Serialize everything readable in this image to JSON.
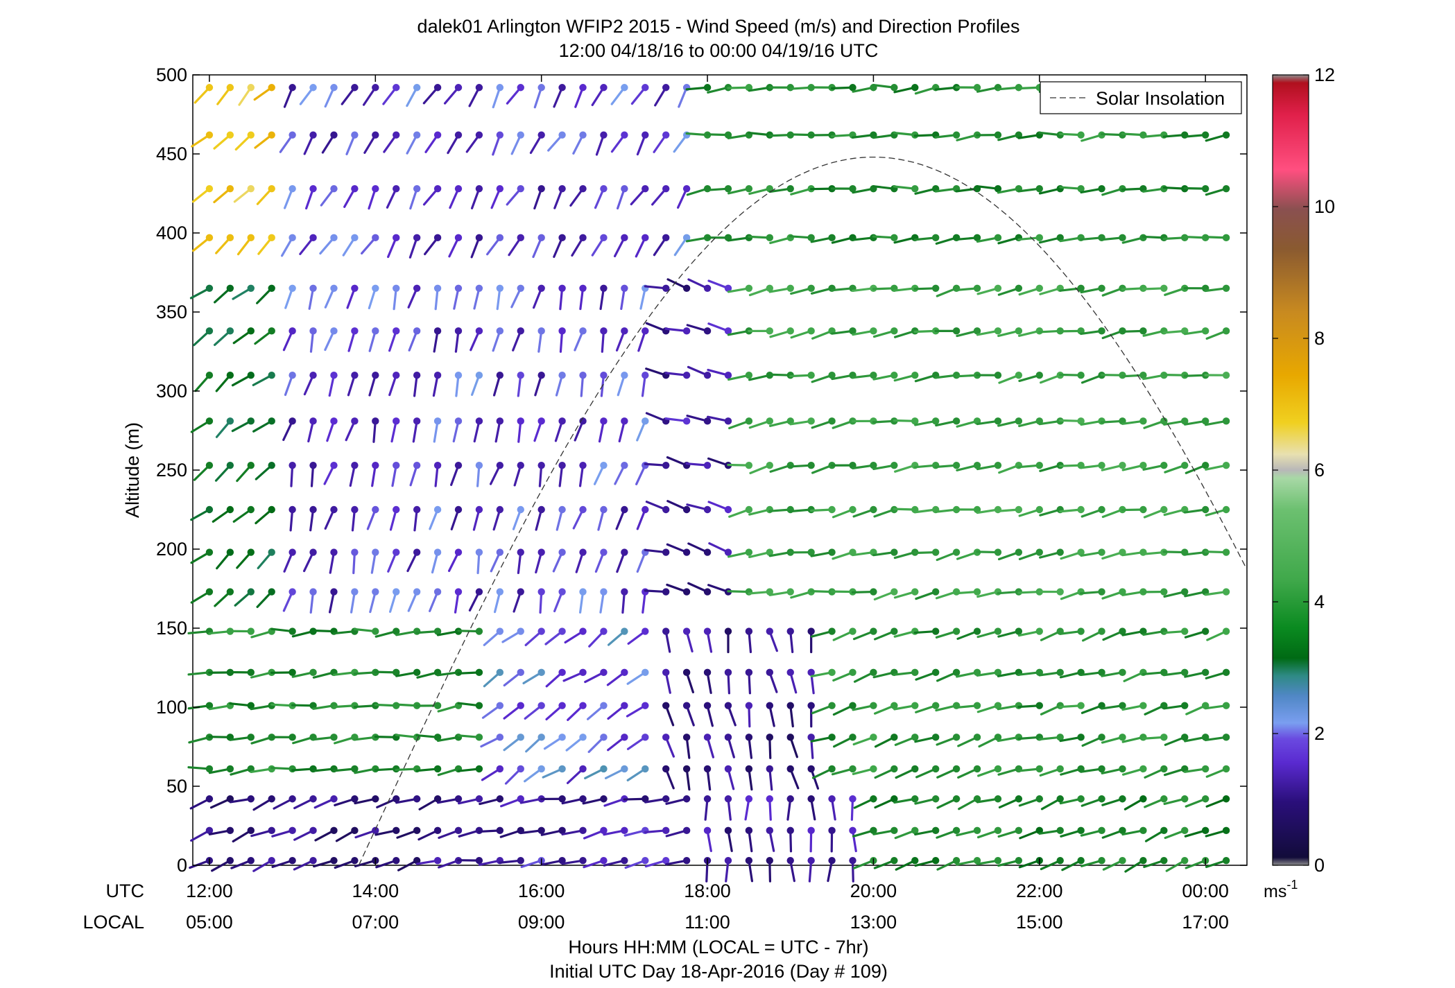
{
  "chart_data": {
    "type": "wind-barb-profile",
    "title": "dalek01 Arlington WFIP2 2015 - Wind Speed (m/s) and Direction Profiles",
    "subtitle": "12:00 04/18/16 to 00:00 04/19/16  UTC",
    "ylabel": "Altitude (m)",
    "xlabel": "Hours HH:MM  (LOCAL = UTC - 7hr)",
    "xlabel2": "Initial UTC Day 18-Apr-2016 (Day # 109)",
    "x_row_labels": [
      "UTC",
      "LOCAL"
    ],
    "ylim": [
      0,
      500
    ],
    "yticks": [
      "0",
      "50",
      "100",
      "150",
      "200",
      "250",
      "300",
      "350",
      "400",
      "450",
      "500"
    ],
    "xlim_hours": [
      11.8,
      24.5
    ],
    "xticks": [
      {
        "hour": 12,
        "utc": "12:00",
        "local": "05:00"
      },
      {
        "hour": 14,
        "utc": "14:00",
        "local": "07:00"
      },
      {
        "hour": 16,
        "utc": "16:00",
        "local": "09:00"
      },
      {
        "hour": 18,
        "utc": "18:00",
        "local": "11:00"
      },
      {
        "hour": 20,
        "utc": "20:00",
        "local": "13:00"
      },
      {
        "hour": 22,
        "utc": "22:00",
        "local": "15:00"
      },
      {
        "hour": 24,
        "utc": "00:00",
        "local": "17:00"
      }
    ],
    "colorbar": {
      "min": 0,
      "max": 12,
      "ticks": [
        "0",
        "2",
        "4",
        "6",
        "8",
        "10",
        "12"
      ],
      "unit": "ms-1"
    },
    "legend": {
      "position": "top-right",
      "entries": [
        "Solar Insolation"
      ]
    },
    "solar_insolation": {
      "peak_hour": 20.0,
      "peak_altitude_m": 448,
      "start_hour": 13.8,
      "end_hour": 24.5,
      "end_altitude_m": 205
    },
    "altitudes_m": [
      3,
      22,
      42,
      61,
      81,
      101,
      122,
      148,
      173,
      198,
      225,
      253,
      281,
      310,
      338,
      365,
      397,
      428,
      462,
      492
    ],
    "time_step_hours": 0.25,
    "wind_regimes": [
      {
        "alt_max": 60,
        "h0": 12.0,
        "h1": 15.0,
        "direction_deg": 250,
        "speed_ms": 1.0
      },
      {
        "alt_max": 60,
        "h0": 15.0,
        "h1": 17.8,
        "direction_deg": 260,
        "speed_ms": 1.3
      },
      {
        "alt_max": 60,
        "h0": 17.8,
        "h1": 20.0,
        "direction_deg": 180,
        "speed_ms": 1.2
      },
      {
        "alt_max": 60,
        "h0": 20.0,
        "h1": 24.3,
        "direction_deg": 250,
        "speed_ms": 3.6
      },
      {
        "alt_min": 60,
        "alt_max": 160,
        "h0": 12.0,
        "h1": 15.5,
        "direction_deg": 265,
        "speed_ms": 3.8
      },
      {
        "alt_min": 60,
        "alt_max": 160,
        "h0": 15.5,
        "h1": 17.5,
        "direction_deg": 235,
        "speed_ms": 1.9
      },
      {
        "alt_min": 60,
        "alt_max": 160,
        "h0": 17.5,
        "h1": 19.5,
        "direction_deg": 170,
        "speed_ms": 1.0
      },
      {
        "alt_min": 60,
        "alt_max": 160,
        "h0": 19.5,
        "h1": 24.3,
        "direction_deg": 255,
        "speed_ms": 3.9
      },
      {
        "alt_min": 160,
        "alt_max": 390,
        "h0": 12.0,
        "h1": 13.0,
        "direction_deg": 230,
        "speed_ms": 3.2
      },
      {
        "alt_min": 160,
        "alt_max": 390,
        "h0": 13.0,
        "h1": 17.5,
        "direction_deg": 195,
        "speed_ms": 1.6
      },
      {
        "alt_min": 160,
        "alt_max": 390,
        "h0": 17.5,
        "h1": 18.3,
        "direction_deg": 285,
        "speed_ms": 1.2
      },
      {
        "alt_min": 160,
        "alt_max": 390,
        "h0": 18.3,
        "h1": 24.3,
        "direction_deg": 260,
        "speed_ms": 4.2
      },
      {
        "alt_min": 390,
        "h0": 12.0,
        "h1": 13.0,
        "direction_deg": 225,
        "speed_ms": 7.0
      },
      {
        "alt_min": 390,
        "h0": 13.0,
        "h1": 17.8,
        "direction_deg": 210,
        "speed_ms": 1.6
      },
      {
        "alt_min": 390,
        "h0": 17.8,
        "h1": 24.3,
        "direction_deg": 265,
        "speed_ms": 3.8
      }
    ]
  }
}
